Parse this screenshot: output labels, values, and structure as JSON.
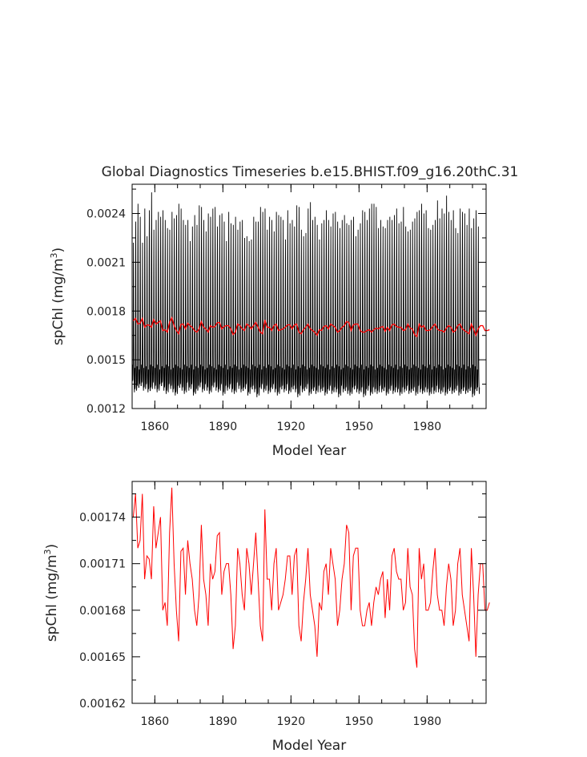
{
  "chart_data": [
    {
      "type": "line",
      "title": "Global Diagnostics Timeseries b.e15.BHIST.f09_g16.20thC.31",
      "xlabel": "Model Year",
      "ylabel": "spChl (mg/m³)",
      "ylabel_main": "spChl (mg/m",
      "ylabel_sup": "3",
      "ylabel_close": ")",
      "xlim": [
        1850,
        2006
      ],
      "ylim": [
        0.0012,
        0.00258
      ],
      "x_ticks": [
        1860,
        1890,
        1920,
        1950,
        1980
      ],
      "x_tick_labels": [
        "1860",
        "1890",
        "1920",
        "1950",
        "1980"
      ],
      "y_ticks": [
        0.0012,
        0.0015,
        0.0018,
        0.0021,
        0.0024
      ],
      "y_tick_labels": [
        "0.0012",
        "0.0015",
        "0.0018",
        "0.0021",
        "0.0024"
      ],
      "grid": false,
      "series": [
        {
          "color": "#000000",
          "resolution": "monthly",
          "x_start": 1850,
          "x_end": 2005,
          "annual_max": [
            0.00222,
            0.00235,
            0.00246,
            0.00238,
            0.00222,
            0.00243,
            0.00226,
            0.00242,
            0.00253,
            0.0023,
            0.00236,
            0.00241,
            0.00238,
            0.00242,
            0.00236,
            0.00231,
            0.0023,
            0.00241,
            0.00237,
            0.00239,
            0.00246,
            0.00243,
            0.00236,
            0.00233,
            0.00236,
            0.00223,
            0.00232,
            0.00239,
            0.00233,
            0.00245,
            0.00244,
            0.00236,
            0.00229,
            0.0024,
            0.00238,
            0.00243,
            0.00244,
            0.00232,
            0.00239,
            0.0024,
            0.00235,
            0.00223,
            0.00241,
            0.00234,
            0.00233,
            0.00238,
            0.0023,
            0.00235,
            0.00236,
            0.00225,
            0.00226,
            0.00223,
            0.00224,
            0.00238,
            0.00235,
            0.00235,
            0.00244,
            0.00241,
            0.00243,
            0.0023,
            0.00238,
            0.00236,
            0.00229,
            0.00241,
            0.00239,
            0.00238,
            0.00236,
            0.00224,
            0.00242,
            0.00234,
            0.00236,
            0.00232,
            0.00245,
            0.00244,
            0.0023,
            0.00226,
            0.00228,
            0.00243,
            0.00247,
            0.00236,
            0.00238,
            0.00233,
            0.00224,
            0.00234,
            0.00236,
            0.00242,
            0.00236,
            0.00232,
            0.0024,
            0.00241,
            0.00235,
            0.00231,
            0.00236,
            0.00239,
            0.00234,
            0.00233,
            0.00236,
            0.00238,
            0.00226,
            0.0023,
            0.00234,
            0.00242,
            0.00241,
            0.00236,
            0.00243,
            0.00246,
            0.00246,
            0.00244,
            0.00231,
            0.00236,
            0.00232,
            0.00231,
            0.00236,
            0.00238,
            0.00236,
            0.00239,
            0.00243,
            0.00234,
            0.00235,
            0.00244,
            0.00232,
            0.00229,
            0.0023,
            0.00235,
            0.00237,
            0.00241,
            0.00242,
            0.00246,
            0.0024,
            0.00242,
            0.00231,
            0.0023,
            0.00233,
            0.00236,
            0.00248,
            0.00237,
            0.00243,
            0.0024,
            0.00251,
            0.00241,
            0.00236,
            0.00242,
            0.00231,
            0.00228,
            0.00243,
            0.00241,
            0.0024,
            0.00233,
            0.00243,
            0.00231,
            0.00237,
            0.00242,
            0.00232,
            0.00228,
            0.00237,
            0.00235
          ],
          "annual_min": [
            0.00135,
            0.0013,
            0.00132,
            0.00133,
            0.00134,
            0.00131,
            0.00133,
            0.0013,
            0.00131,
            0.00134,
            0.00132,
            0.0013,
            0.00133,
            0.00134,
            0.00131,
            0.00129,
            0.00133,
            0.00132,
            0.0013,
            0.00128,
            0.00132,
            0.00133,
            0.00131,
            0.00129,
            0.00134,
            0.00131,
            0.00133,
            0.00128,
            0.0013,
            0.00132,
            0.00134,
            0.0013,
            0.00133,
            0.00131,
            0.00129,
            0.00132,
            0.00134,
            0.00131,
            0.0013,
            0.00133,
            0.00128,
            0.00132,
            0.00131,
            0.00133,
            0.0013,
            0.00129,
            0.00134,
            0.00132,
            0.0013,
            0.00131,
            0.00133,
            0.00128,
            0.00131,
            0.00132,
            0.0013,
            0.00127,
            0.00131,
            0.00133,
            0.0013,
            0.00132,
            0.00129,
            0.00131,
            0.00133,
            0.0013,
            0.00128,
            0.00131,
            0.00132,
            0.0013,
            0.00133,
            0.00129,
            0.00131,
            0.00132,
            0.0013,
            0.00127,
            0.00132,
            0.0013,
            0.00131,
            0.00133,
            0.00128,
            0.0013,
            0.00131,
            0.00129,
            0.00132,
            0.0013,
            0.00131,
            0.00128,
            0.0013,
            0.00132,
            0.00129,
            0.00131,
            0.0013,
            0.00127,
            0.00132,
            0.0013,
            0.00131,
            0.00129,
            0.00128,
            0.00131,
            0.00132,
            0.0013,
            0.00129,
            0.00131,
            0.00127,
            0.0013,
            0.00132,
            0.00128,
            0.00131,
            0.0013,
            0.00129,
            0.00132,
            0.0013,
            0.00131,
            0.00128,
            0.0013,
            0.00132,
            0.00129,
            0.00131,
            0.0013,
            0.00128,
            0.00131,
            0.0013,
            0.00132,
            0.00129,
            0.0013,
            0.00131,
            0.00128,
            0.00132,
            0.0013,
            0.00129,
            0.00131,
            0.0013,
            0.00128,
            0.00131,
            0.00129,
            0.00132,
            0.0013,
            0.00129,
            0.00131,
            0.00128,
            0.0013,
            0.00131,
            0.00129,
            0.0013,
            0.00132,
            0.00128,
            0.0013,
            0.00131,
            0.00129,
            0.0013,
            0.00131,
            0.00127,
            0.0013,
            0.00131,
            0.00129,
            0.0013,
            0.00131
          ],
          "annual_trough": [
            0.00147,
            0.00145,
            0.00146,
            0.00144,
            0.00147,
            0.00145,
            0.00146,
            0.00144,
            0.00147,
            0.00146,
            0.00145,
            0.00147,
            0.00144,
            0.00146,
            0.00145,
            0.00147,
            0.00146,
            0.00144,
            0.00145,
            0.00147,
            0.00146,
            0.00145,
            0.00144,
            0.00147,
            0.00146,
            0.00145,
            0.00147,
            0.00144,
            0.00146,
            0.00145,
            0.00147,
            0.00146,
            0.00144,
            0.00145,
            0.00147,
            0.00146,
            0.00145,
            0.00144,
            0.00147,
            0.00146,
            0.00145,
            0.00147,
            0.00144,
            0.00146,
            0.00145,
            0.00147,
            0.00146,
            0.00144,
            0.00145,
            0.00147,
            0.00146,
            0.00145,
            0.00144,
            0.00147,
            0.00146,
            0.00145,
            0.00147,
            0.00144,
            0.00146,
            0.00145,
            0.00147,
            0.00146,
            0.00144,
            0.00145,
            0.00147,
            0.00146,
            0.00145,
            0.00144,
            0.00147,
            0.00146,
            0.00145,
            0.00147,
            0.00144,
            0.00146,
            0.00145,
            0.00147,
            0.00146,
            0.00144,
            0.00145,
            0.00147,
            0.00146,
            0.00145,
            0.00144,
            0.00147,
            0.00146,
            0.00145,
            0.00147,
            0.00144,
            0.00146,
            0.00145,
            0.00147,
            0.00146,
            0.00144,
            0.00145,
            0.00147,
            0.00146,
            0.00145,
            0.00144,
            0.00147,
            0.00146,
            0.00145,
            0.00147,
            0.00144,
            0.00146,
            0.00145,
            0.00147,
            0.00146,
            0.00144,
            0.00145,
            0.00147,
            0.00146,
            0.00145,
            0.00144,
            0.00147,
            0.00146,
            0.00145,
            0.00147,
            0.00144,
            0.00146,
            0.00145,
            0.00147,
            0.00146,
            0.00144,
            0.00145,
            0.00147,
            0.00146,
            0.00145,
            0.00144,
            0.00147,
            0.00146,
            0.00145,
            0.00147,
            0.00144,
            0.00146,
            0.00145,
            0.00147,
            0.00146,
            0.00144,
            0.00145,
            0.00147,
            0.00146,
            0.00145,
            0.00144,
            0.00147,
            0.00146,
            0.00145,
            0.00147,
            0.00144,
            0.00146,
            0.00145,
            0.00147,
            0.00146,
            0.00144
          ]
        },
        {
          "color": "#ff0000",
          "resolution": "annual",
          "ref": "annual_mean"
        }
      ]
    },
    {
      "type": "line",
      "title": "",
      "xlabel": "Model Year",
      "ylabel": "spChl (mg/m³)",
      "ylabel_main": "spChl (mg/m",
      "ylabel_sup": "3",
      "ylabel_close": ")",
      "xlim": [
        1850,
        2006
      ],
      "ylim": [
        0.00162,
        0.001763
      ],
      "x_ticks": [
        1860,
        1890,
        1920,
        1950,
        1980
      ],
      "x_tick_labels": [
        "1860",
        "1890",
        "1920",
        "1950",
        "1980"
      ],
      "y_ticks": [
        0.00162,
        0.00165,
        0.00168,
        0.00171,
        0.00174
      ],
      "y_tick_labels": [
        "0.00162",
        "0.00165",
        "0.00168",
        "0.00171",
        "0.00174"
      ],
      "grid": false,
      "series": [
        {
          "color": "#ff0000",
          "x_start": 1850,
          "x_end": 2005,
          "values": [
            0.00174,
            0.001755,
            0.00172,
            0.001725,
            0.001755,
            0.0017,
            0.001715,
            0.001713,
            0.0017,
            0.001747,
            0.00172,
            0.00173,
            0.00174,
            0.00168,
            0.001685,
            0.00167,
            0.00173,
            0.001759,
            0.00171,
            0.00168,
            0.00166,
            0.001718,
            0.00172,
            0.00169,
            0.001725,
            0.00171,
            0.0017,
            0.00168,
            0.00167,
            0.00169,
            0.001735,
            0.0017,
            0.00169,
            0.00167,
            0.00171,
            0.0017,
            0.001705,
            0.001728,
            0.00173,
            0.00169,
            0.001705,
            0.00171,
            0.00171,
            0.00169,
            0.001655,
            0.00167,
            0.00172,
            0.00171,
            0.00169,
            0.00168,
            0.00172,
            0.00171,
            0.00169,
            0.00171,
            0.00173,
            0.0017,
            0.00167,
            0.00166,
            0.001745,
            0.0017,
            0.0017,
            0.00168,
            0.00171,
            0.00172,
            0.00168,
            0.001685,
            0.00169,
            0.0017,
            0.001715,
            0.001715,
            0.00169,
            0.001715,
            0.00172,
            0.00167,
            0.00166,
            0.001685,
            0.0017,
            0.00172,
            0.00169,
            0.00168,
            0.00167,
            0.00165,
            0.001685,
            0.00168,
            0.001705,
            0.00171,
            0.00169,
            0.00172,
            0.00171,
            0.0017,
            0.00167,
            0.00168,
            0.0017,
            0.00171,
            0.001735,
            0.00173,
            0.00168,
            0.001715,
            0.00172,
            0.00172,
            0.00168,
            0.00167,
            0.00167,
            0.00168,
            0.001685,
            0.00167,
            0.001685,
            0.001695,
            0.00169,
            0.0017,
            0.001705,
            0.001675,
            0.0017,
            0.00168,
            0.001715,
            0.00172,
            0.001705,
            0.0017,
            0.0017,
            0.00168,
            0.001685,
            0.00172,
            0.001695,
            0.00169,
            0.001655,
            0.001643,
            0.00172,
            0.0017,
            0.00171,
            0.00168,
            0.00168,
            0.001685,
            0.001705,
            0.00172,
            0.00169,
            0.00168,
            0.00168,
            0.00167,
            0.001695,
            0.00171,
            0.0017,
            0.00167,
            0.00168,
            0.00171,
            0.00172,
            0.00169,
            0.00168,
            0.00167,
            0.00166,
            0.00172,
            0.00169,
            0.00165,
            0.00169,
            0.00171,
            0.00171,
            0.00168,
            0.00168,
            0.001685
          ],
          "note_placeholder": ""
        }
      ]
    }
  ]
}
